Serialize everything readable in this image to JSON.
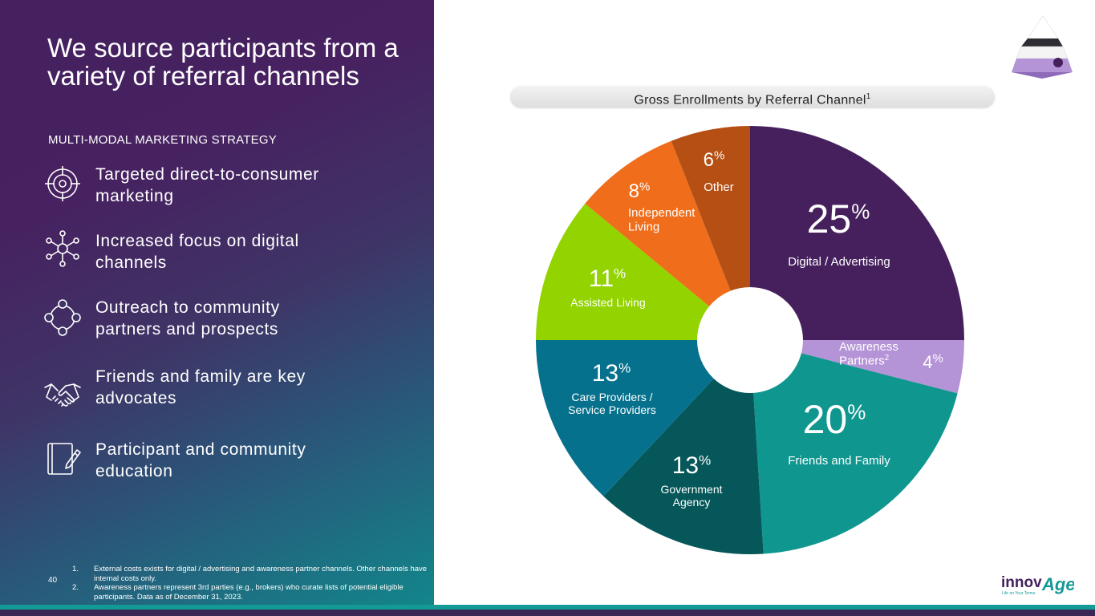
{
  "slide": {
    "title": "We source participants from a variety of referral channels",
    "section_label": "MULTI-MODAL MARKETING STRATEGY",
    "page_number": "40"
  },
  "features": [
    {
      "icon": "target-icon",
      "text": "Targeted direct-to-consumer marketing"
    },
    {
      "icon": "network-icon",
      "text": "Increased focus on digital channels"
    },
    {
      "icon": "community-circle-icon",
      "text": "Outreach to community partners and prospects"
    },
    {
      "icon": "handshake-icon",
      "text": "Friends and family are key advocates"
    },
    {
      "icon": "notebook-pen-icon",
      "text": "Participant and community education"
    }
  ],
  "footnotes": [
    {
      "num": "1.",
      "text": "External costs exists for digital / advertising and awareness partner channels.  Other channels have internal costs only."
    },
    {
      "num": "2.",
      "text": "Awareness partners represent 3rd parties (e.g., brokers) who curate lists of potential eligible participants.  Data as of December 31, 2023."
    }
  ],
  "chart_data": {
    "type": "pie",
    "title": "Gross Enrollments by Referral Channel",
    "title_superscript": "1",
    "unit": "%",
    "start": "12 o'clock, clockwise",
    "slices": [
      {
        "label": "Digital / Advertising",
        "value": 25,
        "color": "#45205d"
      },
      {
        "label": "Awareness Partners",
        "label_superscript": "2",
        "value": 4,
        "color": "#b493d6"
      },
      {
        "label": "Friends and Family",
        "value": 20,
        "color": "#0f968f"
      },
      {
        "label": "Government Agency",
        "value": 13,
        "color": "#05575a"
      },
      {
        "label": "Care Providers / Service Providers",
        "value": 13,
        "color": "#06718d"
      },
      {
        "label": "Assisted Living",
        "value": 11,
        "color": "#93d300"
      },
      {
        "label": "Independent Living",
        "value": 8,
        "color": "#ef6d1b"
      },
      {
        "label": "Other",
        "value": 6,
        "color": "#b54f13"
      }
    ]
  },
  "logo": {
    "brand_prefix": "innov",
    "brand_suffix": "Age",
    "tagline": "Life on Your Terms",
    "colors": {
      "purple": "#45205d",
      "teal": "#139a97"
    }
  }
}
